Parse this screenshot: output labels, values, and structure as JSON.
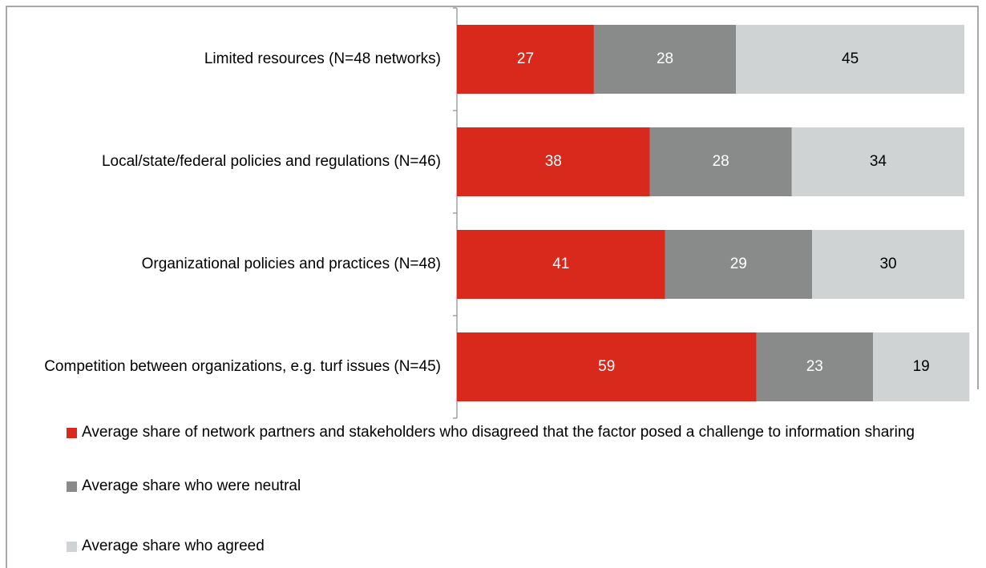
{
  "chart_data": {
    "type": "stacked-bar-horizontal",
    "categories": [
      "Limited resources (N=48 networks)",
      "Local/state/federal policies and regulations (N=46)",
      "Organizational policies and practices (N=48)",
      "Competition between organizations, e.g. turf issues (N=45)"
    ],
    "series": [
      {
        "name": "Average share of network partners and stakeholders who disagreed that the factor posed a challenge to information sharing",
        "color": "#d9291c",
        "label_color": "#ffffff",
        "values": [
          27,
          38,
          41,
          59
        ]
      },
      {
        "name": "Average share who were neutral",
        "color": "#898b8b",
        "label_color": "#ffffff",
        "values": [
          28,
          28,
          29,
          23
        ]
      },
      {
        "name": "Average share who agreed",
        "color": "#d0d3d4",
        "label_color": "#000000",
        "values": [
          45,
          34,
          30,
          19
        ]
      }
    ],
    "xlim": [
      0,
      100
    ]
  }
}
